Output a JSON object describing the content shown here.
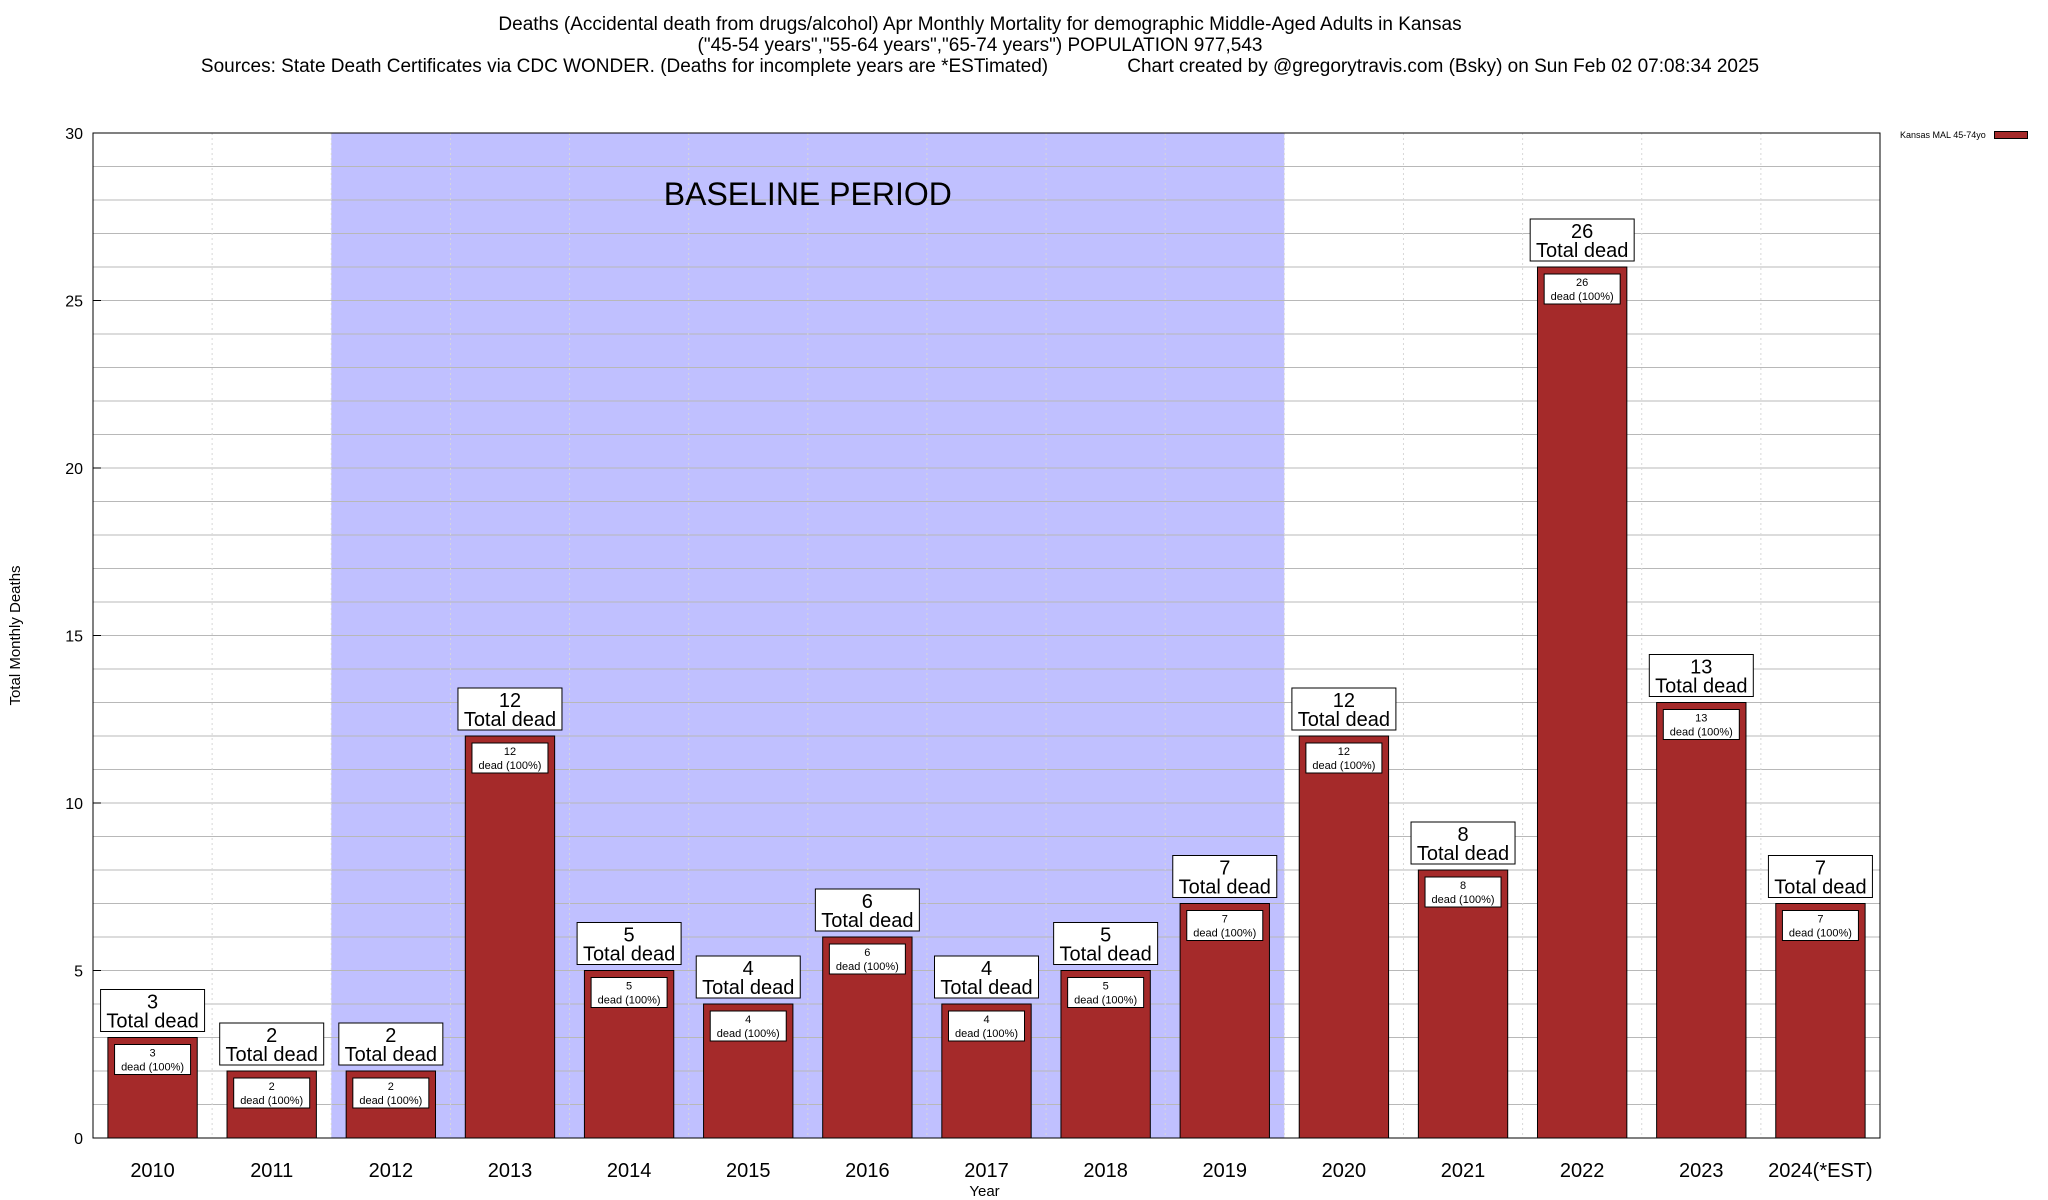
{
  "title": {
    "line1": "Deaths (Accidental death from drugs/alcohol) Apr Monthly Mortality for demographic Middle-Aged Adults in Kansas",
    "line2": "(\"45-54 years\",\"55-64 years\",\"65-74 years\") POPULATION 977,543",
    "line3": "Sources: State Death Certificates via CDC WONDER. (Deaths for incomplete years are *ESTimated)               Chart created by @gregorytravis.com (Bsky) on Sun Feb 02 07:08:34 2025"
  },
  "legend": {
    "label": "Kansas MAL 45-74yo",
    "color": "#a52a2a"
  },
  "chart_data": {
    "type": "bar",
    "xlabel": "Year",
    "ylabel": "Total Monthly Deaths",
    "ylim": [
      0,
      30
    ],
    "yticks": [
      0,
      5,
      10,
      15,
      20,
      25,
      30
    ],
    "grid": true,
    "legend_position": "outside-top-right",
    "categories": [
      "2010",
      "2011",
      "2012",
      "2013",
      "2014",
      "2015",
      "2016",
      "2017",
      "2018",
      "2019",
      "2020",
      "2021",
      "2022",
      "2023",
      "2024(*EST)"
    ],
    "series": [
      {
        "name": "Kansas MAL 45-74yo",
        "values": [
          3,
          2,
          2,
          12,
          5,
          4,
          6,
          4,
          5,
          7,
          12,
          8,
          26,
          13,
          7
        ]
      }
    ],
    "total_label_text": "Total dead",
    "inner_label_text": "dead (100%)",
    "baseline_period": {
      "label": "BASELINE PERIOD",
      "start": "2012",
      "end": "2019"
    },
    "colors": {
      "bar": "#a52a2a",
      "baseline": "#c0c0ff",
      "grid": "#b8b8b8"
    }
  }
}
